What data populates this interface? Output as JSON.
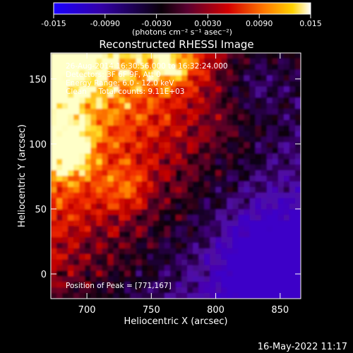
{
  "chart_data": {
    "type": "heatmap",
    "title": "Reconstructed RHESSI Image",
    "xlabel": "Heliocentric X (arcsec)",
    "ylabel": "Heliocentric Y (arcsec)",
    "xlim": [
      672,
      866
    ],
    "ylim": [
      -19,
      170
    ],
    "x_ticks": [
      700,
      750,
      800,
      850
    ],
    "y_ticks": [
      0,
      50,
      100,
      150
    ],
    "colorbar": {
      "ticks": [
        "-0.015",
        "-0.0090",
        "-0.0030",
        "0.0030",
        "0.0090",
        "0.015"
      ],
      "range": [
        -0.015,
        0.015
      ],
      "unit_label": "(photons cm⁻² s⁻¹ asec⁻²)",
      "colormap": [
        "#0000ff",
        "#3300aa",
        "#000000",
        "#660033",
        "#d60000",
        "#ff7000",
        "#ffd000",
        "#ffffff"
      ]
    },
    "annotations": [
      "26-Aug-2014 16:30:56.000 to 16:32:24.000",
      "Detectors: 3F 6F 9F, Att 0",
      "Energy Range: 6.0 - 12.0 keV",
      "Clean     Total counts: 9.11E+03"
    ],
    "peak_label": "Position of Peak = [771,167]",
    "peak_position": [
      771,
      167
    ]
  },
  "footer": {
    "timestamp": "16-May-2022 11:17"
  }
}
